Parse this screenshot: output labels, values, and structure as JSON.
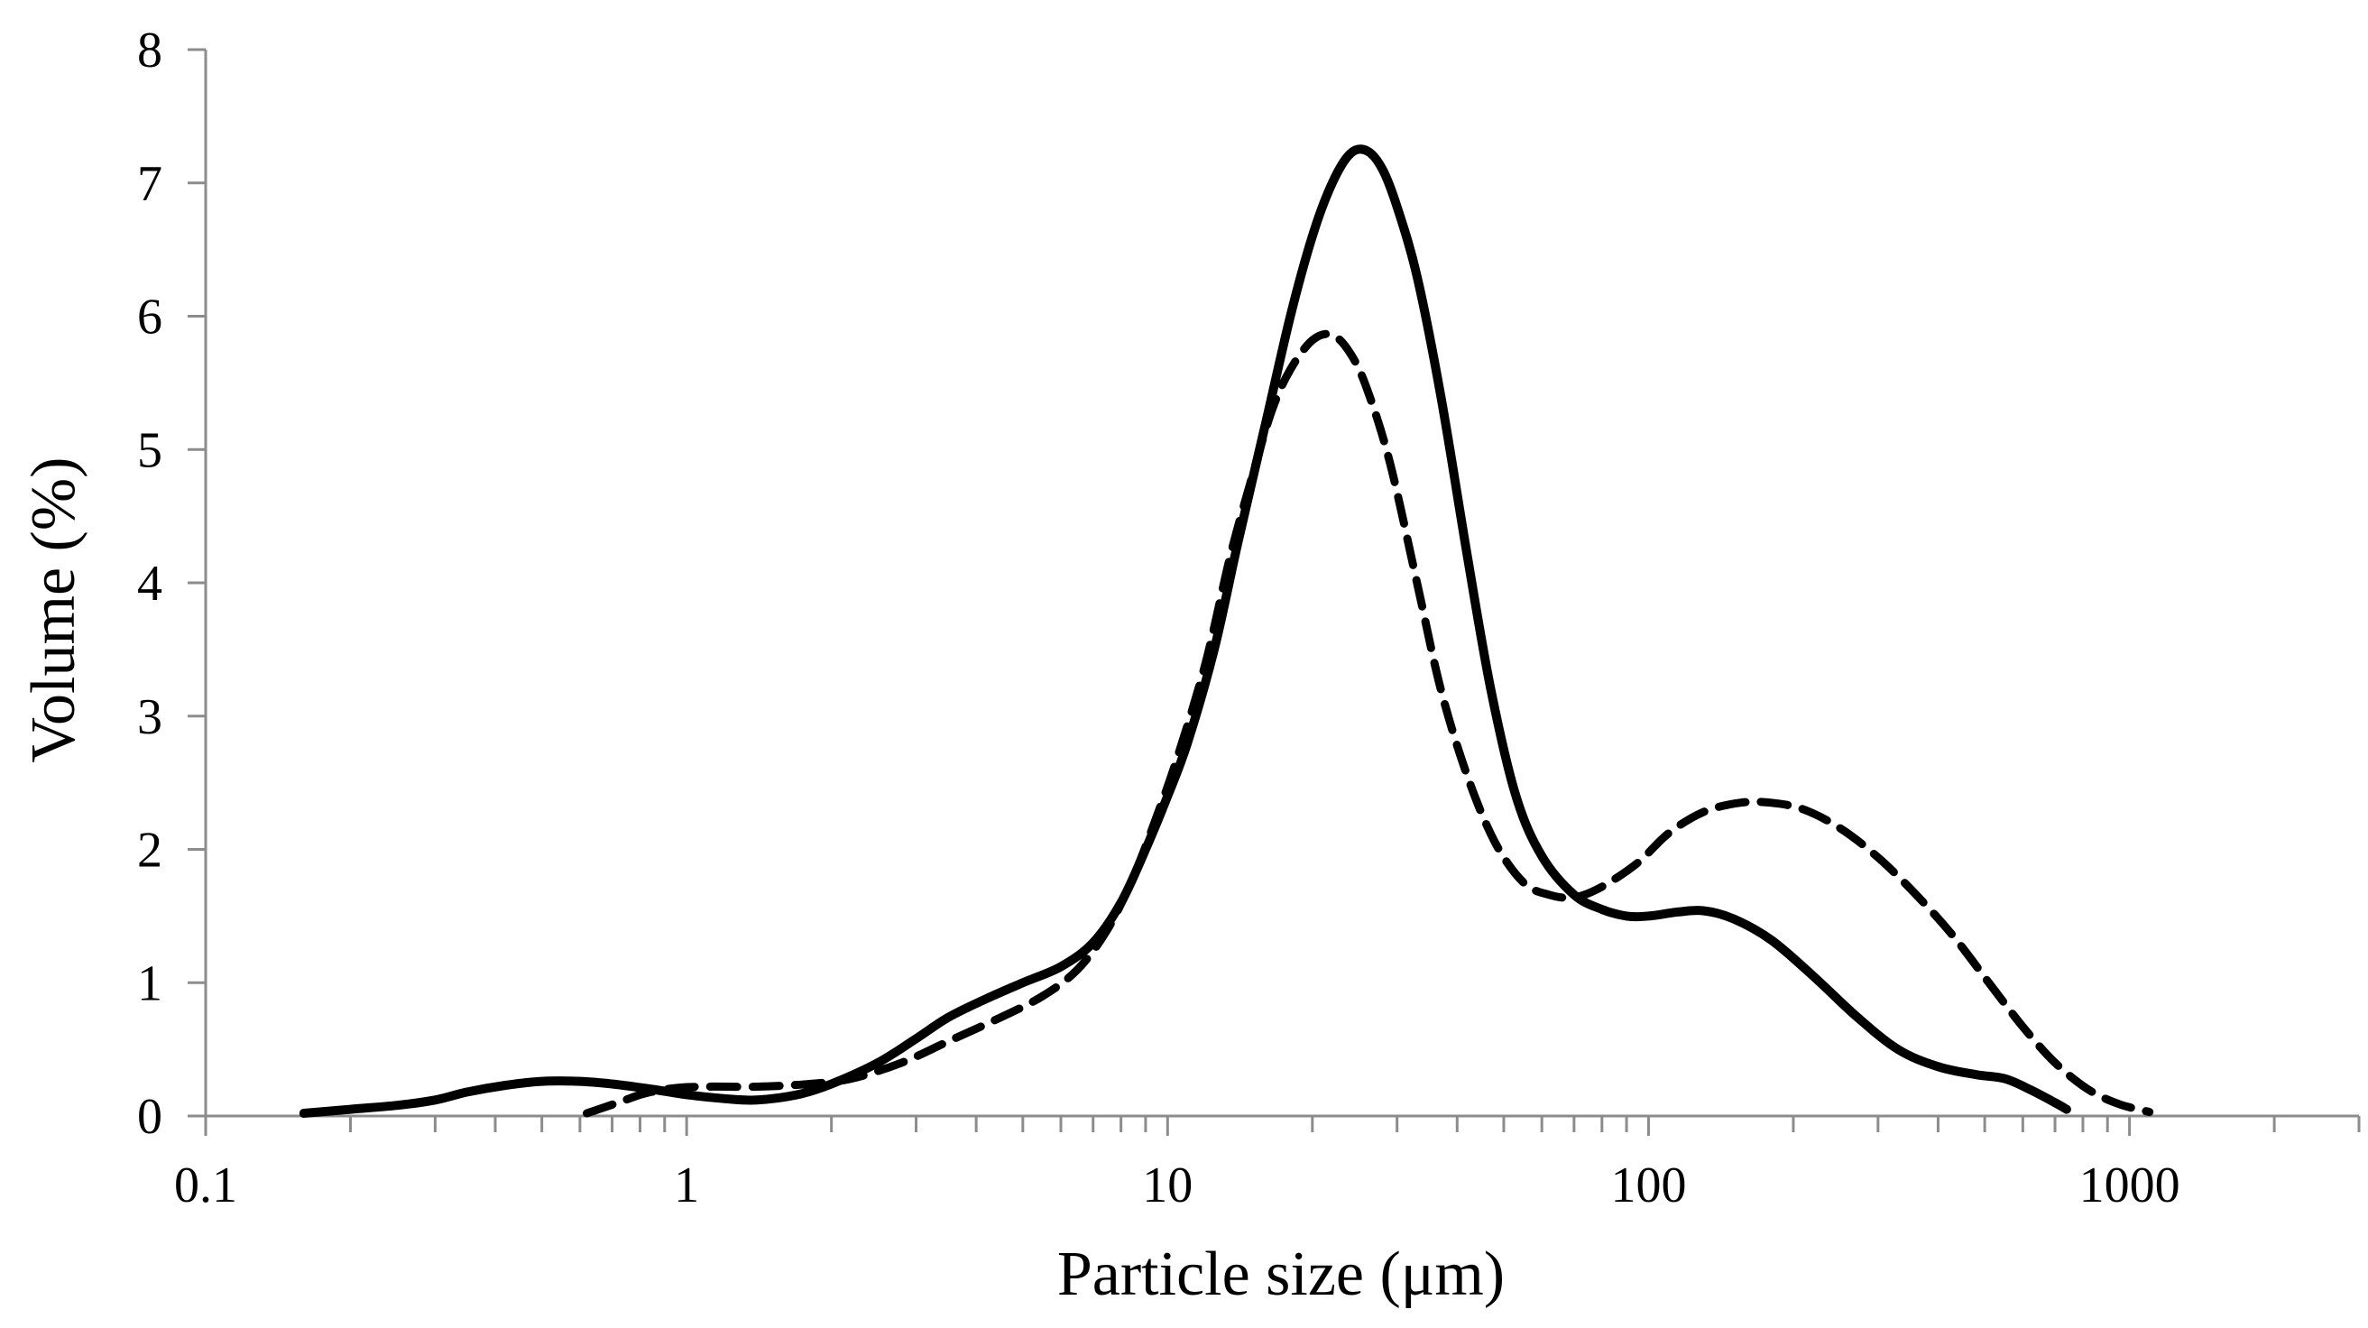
{
  "chart_data": {
    "type": "line",
    "title": "",
    "xlabel": "Particle size (μm)",
    "ylabel": "Volume (%)",
    "xscale": "log",
    "xlim": [
      0.1,
      3000
    ],
    "ylim": [
      0,
      8
    ],
    "x_tick_labels": [
      "0.1",
      "1",
      "10",
      "100",
      "1000"
    ],
    "x_tick_values": [
      0.1,
      1,
      10,
      100,
      1000
    ],
    "y_tick_labels": [
      "0",
      "1",
      "2",
      "3",
      "4",
      "5",
      "6",
      "7",
      "8"
    ],
    "y_tick_values": [
      0,
      1,
      2,
      3,
      4,
      5,
      6,
      7,
      8
    ],
    "grid": false,
    "legend": "none",
    "series": [
      {
        "style": "solid",
        "color": "#000000",
        "points": [
          [
            0.16,
            0.02
          ],
          [
            0.2,
            0.05
          ],
          [
            0.25,
            0.08
          ],
          [
            0.3,
            0.12
          ],
          [
            0.35,
            0.18
          ],
          [
            0.42,
            0.23
          ],
          [
            0.5,
            0.26
          ],
          [
            0.6,
            0.26
          ],
          [
            0.7,
            0.24
          ],
          [
            0.85,
            0.2
          ],
          [
            1.0,
            0.16
          ],
          [
            1.2,
            0.13
          ],
          [
            1.4,
            0.12
          ],
          [
            1.7,
            0.16
          ],
          [
            2.0,
            0.24
          ],
          [
            2.5,
            0.4
          ],
          [
            3.0,
            0.58
          ],
          [
            3.5,
            0.74
          ],
          [
            4.2,
            0.88
          ],
          [
            5.0,
            1.0
          ],
          [
            6.0,
            1.12
          ],
          [
            7.0,
            1.3
          ],
          [
            8.0,
            1.6
          ],
          [
            9.0,
            2.0
          ],
          [
            10.0,
            2.4
          ],
          [
            11.0,
            2.8
          ],
          [
            12.5,
            3.5
          ],
          [
            14.0,
            4.3
          ],
          [
            16.0,
            5.2
          ],
          [
            18.0,
            6.0
          ],
          [
            20.0,
            6.6
          ],
          [
            22.0,
            7.0
          ],
          [
            24.0,
            7.22
          ],
          [
            26.0,
            7.24
          ],
          [
            28.0,
            7.1
          ],
          [
            30.0,
            6.82
          ],
          [
            33.0,
            6.3
          ],
          [
            37.0,
            5.4
          ],
          [
            42.0,
            4.2
          ],
          [
            47.0,
            3.2
          ],
          [
            53.0,
            2.4
          ],
          [
            60.0,
            1.95
          ],
          [
            70.0,
            1.66
          ],
          [
            80.0,
            1.55
          ],
          [
            90.0,
            1.5
          ],
          [
            100.0,
            1.5
          ],
          [
            115.0,
            1.53
          ],
          [
            130.0,
            1.54
          ],
          [
            150.0,
            1.48
          ],
          [
            180.0,
            1.32
          ],
          [
            220.0,
            1.05
          ],
          [
            270.0,
            0.75
          ],
          [
            330.0,
            0.5
          ],
          [
            400.0,
            0.37
          ],
          [
            480.0,
            0.31
          ],
          [
            550.0,
            0.28
          ],
          [
            620.0,
            0.2
          ],
          [
            700.0,
            0.1
          ],
          [
            740.0,
            0.05
          ]
        ]
      },
      {
        "style": "dashed",
        "color": "#000000",
        "points": [
          [
            0.62,
            0.02
          ],
          [
            0.72,
            0.1
          ],
          [
            0.82,
            0.17
          ],
          [
            0.95,
            0.21
          ],
          [
            1.1,
            0.22
          ],
          [
            1.4,
            0.22
          ],
          [
            1.8,
            0.24
          ],
          [
            2.2,
            0.28
          ],
          [
            2.8,
            0.4
          ],
          [
            3.5,
            0.56
          ],
          [
            4.5,
            0.74
          ],
          [
            5.5,
            0.9
          ],
          [
            6.5,
            1.1
          ],
          [
            7.5,
            1.4
          ],
          [
            8.5,
            1.8
          ],
          [
            9.5,
            2.25
          ],
          [
            10.5,
            2.7
          ],
          [
            12.0,
            3.4
          ],
          [
            13.5,
            4.2
          ],
          [
            15.0,
            4.8
          ],
          [
            16.5,
            5.3
          ],
          [
            18.0,
            5.6
          ],
          [
            20.0,
            5.82
          ],
          [
            22.0,
            5.86
          ],
          [
            24.0,
            5.72
          ],
          [
            26.0,
            5.45
          ],
          [
            29.0,
            4.9
          ],
          [
            33.0,
            4.0
          ],
          [
            37.0,
            3.2
          ],
          [
            42.0,
            2.55
          ],
          [
            48.0,
            2.05
          ],
          [
            55.0,
            1.75
          ],
          [
            62.0,
            1.66
          ],
          [
            70.0,
            1.64
          ],
          [
            80.0,
            1.72
          ],
          [
            95.0,
            1.9
          ],
          [
            110.0,
            2.12
          ],
          [
            130.0,
            2.28
          ],
          [
            155.0,
            2.35
          ],
          [
            180.0,
            2.35
          ],
          [
            210.0,
            2.3
          ],
          [
            250.0,
            2.16
          ],
          [
            300.0,
            1.94
          ],
          [
            360.0,
            1.66
          ],
          [
            430.0,
            1.35
          ],
          [
            510.0,
            1.0
          ],
          [
            600.0,
            0.67
          ],
          [
            700.0,
            0.4
          ],
          [
            820.0,
            0.2
          ],
          [
            950.0,
            0.09
          ],
          [
            1100.0,
            0.03
          ]
        ]
      }
    ]
  }
}
